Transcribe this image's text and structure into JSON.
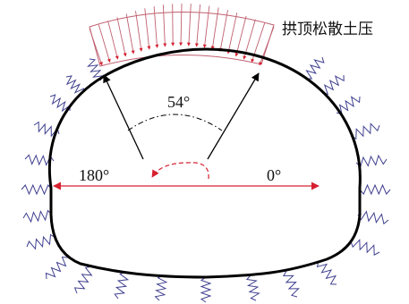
{
  "diagram": {
    "title": "拱顶松散土压",
    "angles": {
      "top": "54°",
      "left": "180°",
      "right": "0°"
    }
  },
  "colors": {
    "lining": "#000000",
    "pressure": "#d62030",
    "pressure_outline": "#c06070",
    "springs": "#3f3f8f",
    "arrows": "#000000"
  }
}
